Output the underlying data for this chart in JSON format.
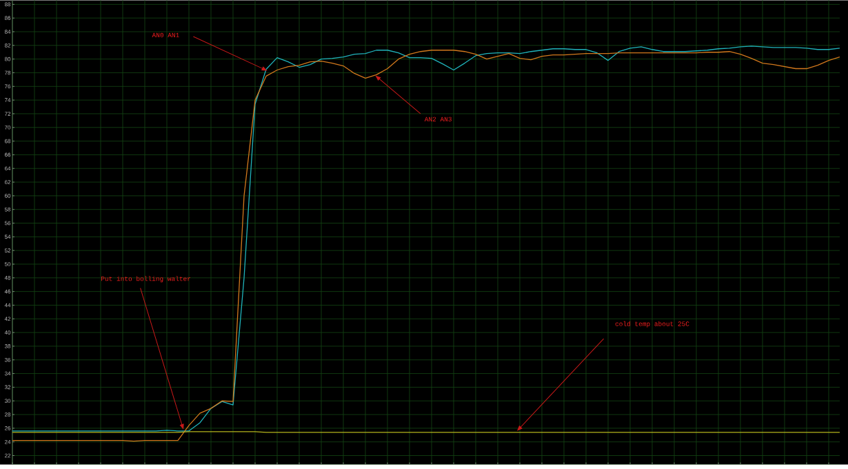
{
  "chart_data": {
    "type": "line",
    "categories": [
      null,
      null,
      null,
      null,
      null,
      null,
      null,
      null,
      null,
      null,
      null,
      null,
      null,
      null,
      null,
      null,
      null,
      null,
      null,
      null,
      null,
      null,
      null,
      null,
      null,
      null,
      null,
      null,
      null,
      null,
      null,
      null,
      null,
      null,
      null,
      null,
      null,
      null,
      null,
      null,
      null,
      null,
      null,
      null,
      null,
      null,
      null,
      null,
      null,
      null,
      null,
      null,
      null,
      null,
      null,
      null,
      null,
      null,
      null,
      null,
      null,
      null,
      null,
      null,
      null,
      null,
      null,
      null,
      null,
      null,
      null,
      null,
      null,
      null,
      null,
      null
    ],
    "series": [
      {
        "color": "#20b4bc",
        "values": [
          25.6,
          25.6,
          25.6,
          25.6,
          25.6,
          25.6,
          25.6,
          25.6,
          25.6,
          25.6,
          25.6,
          25.6,
          25.6,
          25.6,
          25.7,
          25.6,
          25.6,
          26.8,
          28.9,
          29.9,
          29.4,
          48,
          73.4,
          78.5,
          80.2,
          79.6,
          78.8,
          79.2,
          80.0,
          80.1,
          80.3,
          80.7,
          80.8,
          81.3,
          81.3,
          80.9,
          80.2,
          80.2,
          80.1,
          79.3,
          78.4,
          79.4,
          80.5,
          80.8,
          80.9,
          80.9,
          80.8,
          81.1,
          81.3,
          81.5,
          81.5,
          81.4,
          81.4,
          80.9,
          79.8,
          81.1,
          81.6,
          81.8,
          81.4,
          81.1,
          81.1,
          81.1,
          81.2,
          81.3,
          81.5,
          81.6,
          81.8,
          81.9,
          81.8,
          81.7,
          81.7,
          81.7,
          81.6,
          81.4,
          81.4,
          81.6
        ]
      },
      {
        "color": "#d2781c",
        "values": [
          24.2,
          24.2,
          24.2,
          24.2,
          24.2,
          24.2,
          24.2,
          24.2,
          24.2,
          24.2,
          24.2,
          24.1,
          24.2,
          24.2,
          24.2,
          24.2,
          26.4,
          28.2,
          28.9,
          30.0,
          29.9,
          60,
          74,
          77.5,
          78.4,
          78.9,
          79.1,
          79.6,
          79.7,
          79.4,
          79.0,
          77.9,
          77.2,
          77.7,
          78.6,
          80.0,
          80.7,
          81.1,
          81.3,
          81.3,
          81.3,
          81.1,
          80.7,
          80.0,
          80.4,
          80.8,
          80.1,
          79.9,
          80.4,
          80.6,
          80.6,
          80.7,
          80.8,
          80.8,
          80.8,
          80.9,
          80.9,
          80.9,
          80.9,
          80.9,
          80.9,
          80.9,
          80.9,
          81.0,
          81.0,
          81.1,
          80.7,
          80.1,
          79.4,
          79.2,
          78.9,
          78.6,
          78.6,
          79.1,
          79.8,
          80.3
        ]
      },
      {
        "color": "#b4b41c",
        "values": [
          25.4,
          25.4,
          25.4,
          25.4,
          25.4,
          25.4,
          25.4,
          25.4,
          25.4,
          25.4,
          25.4,
          25.4,
          25.4,
          25.4,
          25.4,
          25.4,
          25.5,
          25.5,
          25.5,
          25.5,
          25.5,
          25.5,
          25.5,
          25.4,
          25.4,
          25.4,
          25.4,
          25.4,
          25.4,
          25.4,
          25.4,
          25.4,
          25.4,
          25.4,
          25.4,
          25.4,
          25.4,
          25.4,
          25.4,
          25.4,
          25.4,
          25.4,
          25.4,
          25.4,
          25.4,
          25.4,
          25.4,
          25.4,
          25.4,
          25.4,
          25.4,
          25.4,
          25.4,
          25.4,
          25.4,
          25.4,
          25.4,
          25.4,
          25.4,
          25.4,
          25.4,
          25.4,
          25.4,
          25.4,
          25.4,
          25.4,
          25.4,
          25.4,
          25.4,
          25.4,
          25.4,
          25.4,
          25.4,
          25.4,
          25.4,
          25.4
        ]
      }
    ],
    "ylim": [
      20.7,
      88.6
    ],
    "yticks": [
      22,
      24,
      26,
      28,
      30,
      32,
      34,
      36,
      38,
      40,
      42,
      44,
      46,
      48,
      50,
      52,
      54,
      56,
      58,
      60,
      62,
      64,
      66,
      68,
      70,
      72,
      74,
      76,
      78,
      80,
      82,
      84,
      86,
      88
    ],
    "grid": true,
    "tick_labels": "y",
    "legend": false,
    "marker": "none",
    "line_style": "solid",
    "annotations": [
      "AN0 AN1",
      "AN2 AN3",
      "Put into bolling walter",
      "cold temp  about 25C"
    ]
  }
}
